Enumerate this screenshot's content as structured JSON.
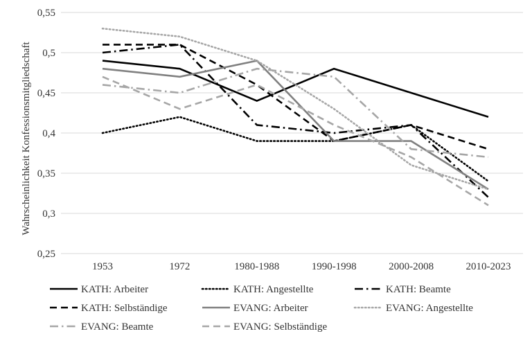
{
  "chart_data": {
    "type": "line",
    "title": "",
    "xlabel": "",
    "ylabel": "Wahrscheinlichkeit Konfessionsmitgliedschaft",
    "categories": [
      "1953",
      "1972",
      "1980-1988",
      "1990-1998",
      "2000-2008",
      "2010-2023"
    ],
    "ylim": [
      0.25,
      0.55
    ],
    "yticks": [
      0.25,
      0.3,
      0.35,
      0.4,
      0.45,
      0.5,
      0.55
    ],
    "ytick_labels": [
      "0,25",
      "0,3",
      "0,35",
      "0,4",
      "0,45",
      "0,5",
      "0,55"
    ],
    "grid": true,
    "legend_position": "bottom",
    "series": [
      {
        "name": "KATH: Arbeiter",
        "color": "#000000",
        "dash": "solid",
        "values": [
          0.49,
          0.48,
          0.44,
          0.48,
          0.45,
          0.42
        ]
      },
      {
        "name": "KATH: Angestellte",
        "color": "#000000",
        "dash": "dotted",
        "values": [
          0.4,
          0.42,
          0.39,
          0.39,
          0.41,
          0.34
        ]
      },
      {
        "name": "KATH: Beamte",
        "color": "#000000",
        "dash": "dashdot",
        "values": [
          0.5,
          0.51,
          0.41,
          0.4,
          0.41,
          0.32
        ]
      },
      {
        "name": "KATH: Selbständige",
        "color": "#000000",
        "dash": "dashed",
        "values": [
          0.51,
          0.51,
          0.46,
          0.39,
          0.41,
          0.38
        ]
      },
      {
        "name": "EVANG: Arbeiter",
        "color": "#808080",
        "dash": "solid",
        "values": [
          0.48,
          0.47,
          0.49,
          0.39,
          0.39,
          0.33
        ]
      },
      {
        "name": "EVANG: Angestellte",
        "color": "#a6a6a6",
        "dash": "dotted",
        "values": [
          0.53,
          0.52,
          0.49,
          0.43,
          0.36,
          0.33
        ]
      },
      {
        "name": "EVANG: Beamte",
        "color": "#a6a6a6",
        "dash": "dashdot",
        "values": [
          0.46,
          0.45,
          0.48,
          0.47,
          0.38,
          0.37
        ]
      },
      {
        "name": "EVANG: Selbständige",
        "color": "#a6a6a6",
        "dash": "dashed",
        "values": [
          0.47,
          0.43,
          0.46,
          0.41,
          0.37,
          0.31
        ]
      }
    ]
  }
}
